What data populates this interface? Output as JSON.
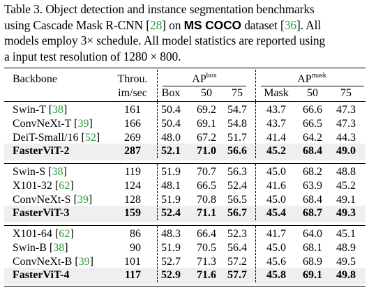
{
  "caption": {
    "line1": "Table 3. Object detection and instance segmentation benchmarks",
    "line2_pre": "using Cascade Mask R-CNN [",
    "line2_cite1": "28",
    "line2_mid": "] on ",
    "line2_bold": "MS COCO",
    "line2_post": " dataset [",
    "line2_cite2": "36",
    "line2_end": "]. All",
    "line3": "models employ 3× schedule. All model statistics are reported using",
    "line4": "a input test resolution of 1280 × 800."
  },
  "header": {
    "backbone": "Backbone",
    "throughput_top": "Throu.",
    "throughput_bottom": "im/sec",
    "ap_box": "AP",
    "ap_box_sup": "box",
    "ap_mask": "AP",
    "ap_mask_sup": "mask",
    "box": "Box",
    "box50": "50",
    "box75": "75",
    "mask": "Mask",
    "mask50": "50",
    "mask75": "75"
  },
  "groups": [
    {
      "rows": [
        {
          "name": "Swin-T",
          "cite": "38",
          "thr": "161",
          "box": "50.4",
          "b50": "69.2",
          "b75": "54.7",
          "mask": "43.7",
          "m50": "66.6",
          "m75": "47.3",
          "bold": false
        },
        {
          "name": "ConvNeXt-T",
          "cite": "39",
          "thr": "166",
          "box": "50.4",
          "b50": "69.1",
          "b75": "54.8",
          "mask": "43.7",
          "m50": "66.5",
          "m75": "47.3",
          "bold": false
        },
        {
          "name": "DeiT-Small/16",
          "cite": "52",
          "thr": "269",
          "box": "48.0",
          "b50": "67.2",
          "b75": "51.7",
          "mask": "41.4",
          "m50": "64.2",
          "m75": "44.3",
          "bold": false
        },
        {
          "name": "FasterViT-2",
          "cite": "",
          "thr": "287",
          "box": "52.1",
          "b50": "71.0",
          "b75": "56.6",
          "mask": "45.2",
          "m50": "68.4",
          "m75": "49.0",
          "bold": true
        }
      ]
    },
    {
      "rows": [
        {
          "name": "Swin-S",
          "cite": "38",
          "thr": "119",
          "box": "51.9",
          "b50": "70.7",
          "b75": "56.3",
          "mask": "45.0",
          "m50": "68.2",
          "m75": "48.8",
          "bold": false
        },
        {
          "name": "X101-32",
          "cite": "62",
          "thr": "124",
          "box": "48.1",
          "b50": "66.5",
          "b75": "52.4",
          "mask": "41.6",
          "m50": "63.9",
          "m75": "45.2",
          "bold": false
        },
        {
          "name": "ConvNeXt-S",
          "cite": "39",
          "thr": "128",
          "box": "51.9",
          "b50": "70.8",
          "b75": "56.5",
          "mask": "45.0",
          "m50": "68.4",
          "m75": "49.1",
          "bold": false
        },
        {
          "name": "FasterViT-3",
          "cite": "",
          "thr": "159",
          "box": "52.4",
          "b50": "71.1",
          "b75": "56.7",
          "mask": "45.4",
          "m50": "68.7",
          "m75": "49.3",
          "bold": true
        }
      ]
    },
    {
      "rows": [
        {
          "name": "X101-64",
          "cite": "62",
          "thr": "86",
          "box": "48.3",
          "b50": "66.4",
          "b75": "52.3",
          "mask": "41.7",
          "m50": "64.0",
          "m75": "45.1",
          "bold": false
        },
        {
          "name": "Swin-B",
          "cite": "38",
          "thr": "90",
          "box": "51.9",
          "b50": "70.5",
          "b75": "56.4",
          "mask": "45.0",
          "m50": "68.1",
          "m75": "48.9",
          "bold": false
        },
        {
          "name": "ConvNeXt-B",
          "cite": "39",
          "thr": "101",
          "box": "52.7",
          "b50": "71.3",
          "b75": "57.2",
          "mask": "45.6",
          "m50": "68.9",
          "m75": "49.5",
          "bold": false
        },
        {
          "name": "FasterViT-4",
          "cite": "",
          "thr": "117",
          "box": "52.9",
          "b50": "71.6",
          "b75": "57.7",
          "mask": "45.8",
          "m50": "69.1",
          "m75": "49.8",
          "bold": true
        }
      ]
    }
  ]
}
